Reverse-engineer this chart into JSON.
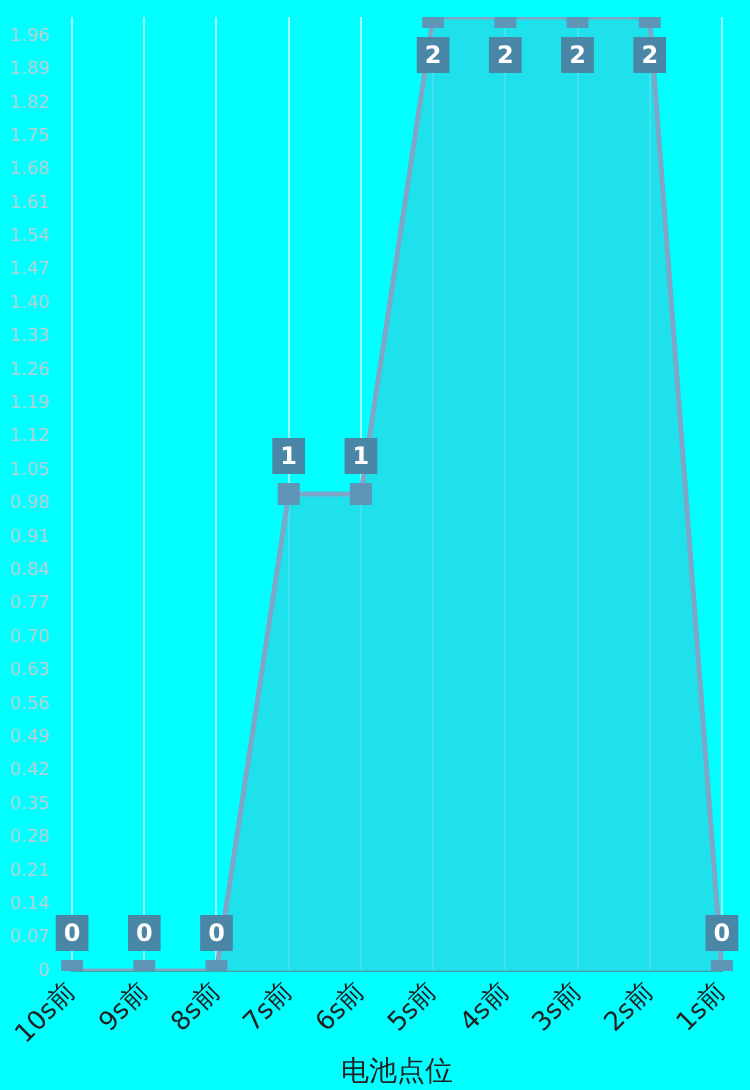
{
  "chart_data": {
    "type": "area",
    "xlabel": "电池点位",
    "categories": [
      "10s前",
      "9s前",
      "8s前",
      "7s前",
      "6s前",
      "5s前",
      "4s前",
      "3s前",
      "2s前",
      "1s前"
    ],
    "series": [
      {
        "color": "#7fa6c8",
        "values": [
          0,
          0,
          0,
          1,
          1,
          2,
          2,
          2,
          2,
          0
        ]
      }
    ],
    "ylim": [
      0,
      2
    ],
    "yticks": [
      0,
      0.07,
      0.14,
      0.21,
      0.28,
      0.35,
      0.42,
      0.49,
      0.56,
      0.63,
      {
        "value": 0.7,
        "label": "0.70"
      },
      0.77,
      0.84,
      0.91,
      0.98,
      1.05,
      1.12,
      1.19,
      1.26,
      1.33,
      {
        "value": 1.4,
        "label": "1.40"
      },
      1.47,
      1.54,
      1.61,
      1.68,
      1.75,
      1.82,
      1.89,
      1.96
    ],
    "grid": "x",
    "marker": "square",
    "data_labels": true,
    "legend": false
  }
}
